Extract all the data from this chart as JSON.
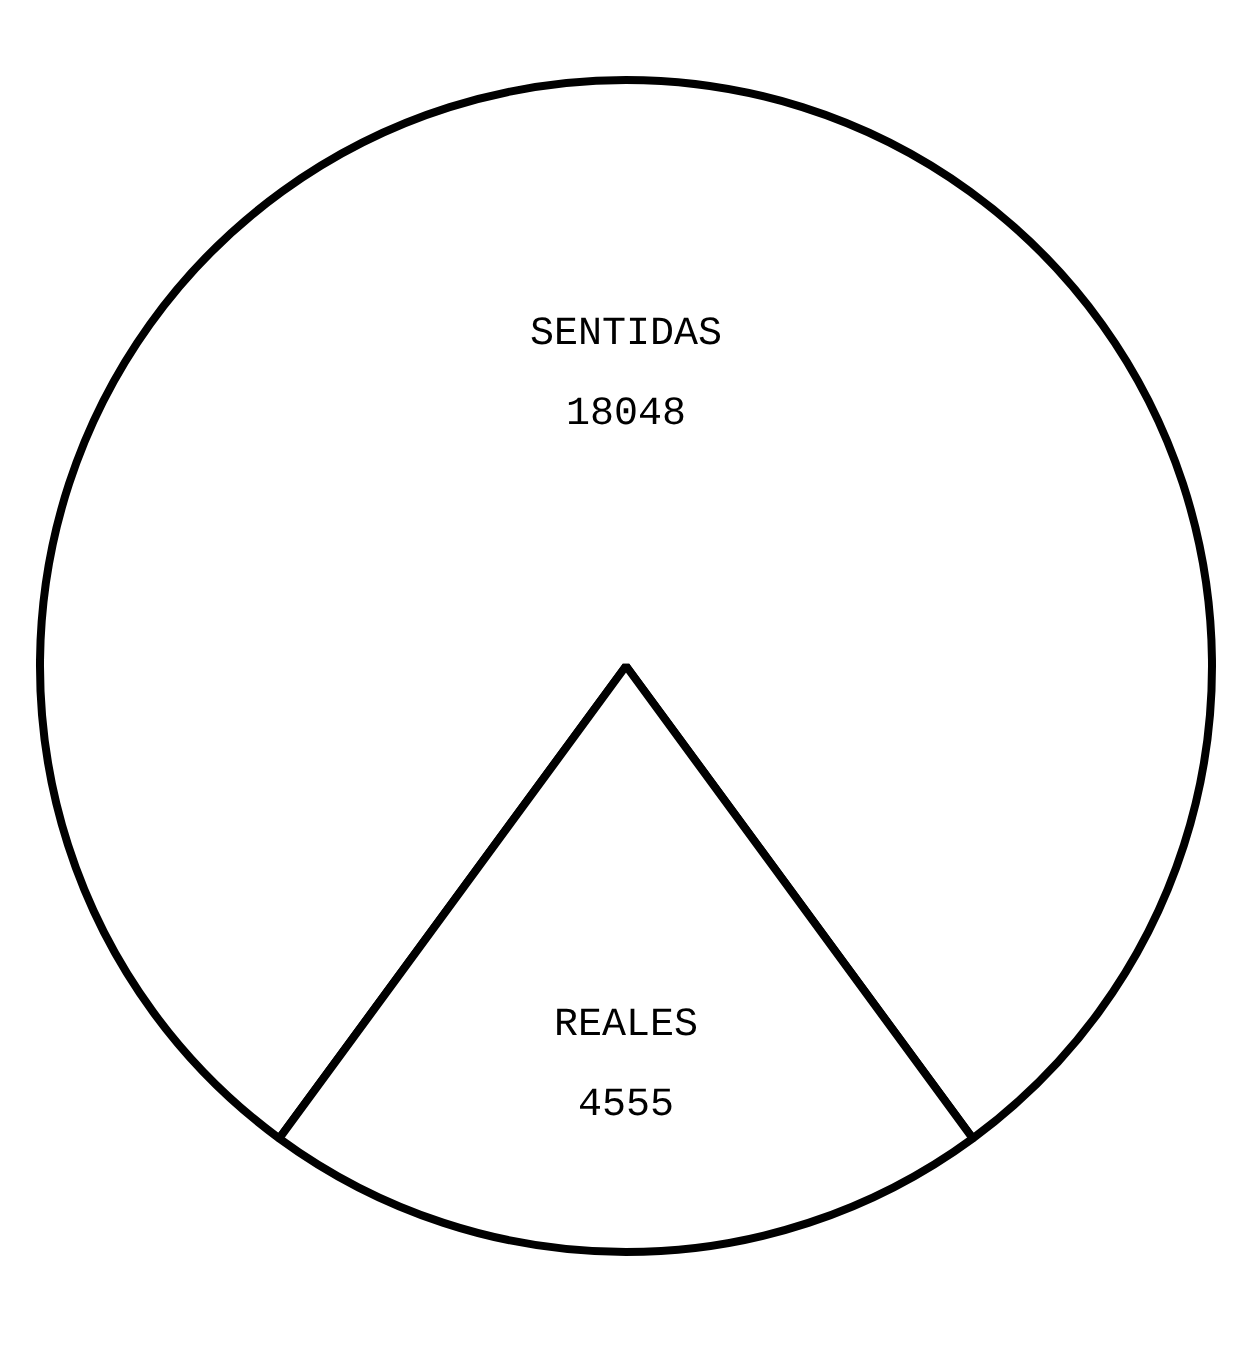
{
  "chart_data": {
    "type": "pie",
    "categories": [
      "SENTIDAS",
      "REALES"
    ],
    "values": [
      18048,
      4555
    ],
    "colors": [
      "#ffffff",
      "#ffffff"
    ],
    "data_labels": true
  }
}
